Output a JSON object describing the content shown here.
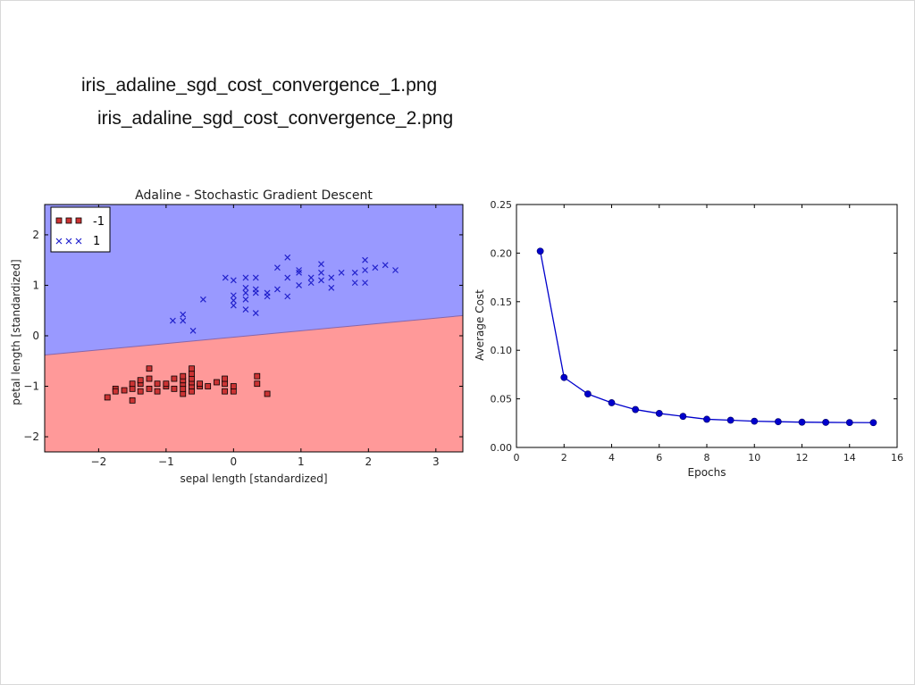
{
  "captions": [
    "iris_adaline_sgd_cost_convergence_1.png",
    "iris_adaline_sgd_cost_convergence_2.png"
  ],
  "colors": {
    "region_pos": "#9999ff",
    "region_neg": "#ff9999",
    "class_neg": "#cc3333",
    "class_pos": "#2222cc",
    "cost_line": "#0000cc"
  },
  "chart_data": [
    {
      "type": "scatter",
      "title": "Adaline - Stochastic Gradient Descent",
      "xlabel": "sepal length [standardized]",
      "ylabel": "petal length [standardized]",
      "xlim": [
        -2.8,
        3.4
      ],
      "ylim": [
        -2.3,
        2.6
      ],
      "xticks": [
        -2,
        -1,
        0,
        1,
        2,
        3
      ],
      "yticks": [
        -2,
        -1,
        0,
        1,
        2
      ],
      "legend_position": "top-left",
      "decision_boundary": {
        "x": [
          -2.8,
          3.4
        ],
        "y": [
          -0.38,
          0.4
        ]
      },
      "regions": [
        {
          "label": "1",
          "side": "above"
        },
        {
          "label": "-1",
          "side": "below"
        }
      ],
      "series": [
        {
          "name": "-1",
          "marker": "square",
          "points": [
            [
              -1.87,
              -1.22
            ],
            [
              -1.75,
              -1.05
            ],
            [
              -1.75,
              -1.1
            ],
            [
              -1.62,
              -1.08
            ],
            [
              -1.5,
              -1.05
            ],
            [
              -1.5,
              -0.95
            ],
            [
              -1.5,
              -1.28
            ],
            [
              -1.38,
              -1.1
            ],
            [
              -1.38,
              -0.95
            ],
            [
              -1.38,
              -0.88
            ],
            [
              -1.25,
              -1.05
            ],
            [
              -1.25,
              -0.85
            ],
            [
              -1.25,
              -0.65
            ],
            [
              -1.13,
              -1.1
            ],
            [
              -1.13,
              -0.95
            ],
            [
              -1.0,
              -1.0
            ],
            [
              -1.0,
              -0.95
            ],
            [
              -0.88,
              -1.05
            ],
            [
              -0.88,
              -0.85
            ],
            [
              -0.75,
              -1.15
            ],
            [
              -0.75,
              -1.05
            ],
            [
              -0.75,
              -0.95
            ],
            [
              -0.75,
              -0.88
            ],
            [
              -0.75,
              -0.8
            ],
            [
              -0.62,
              -1.1
            ],
            [
              -0.62,
              -1.0
            ],
            [
              -0.62,
              -0.92
            ],
            [
              -0.62,
              -0.85
            ],
            [
              -0.62,
              -0.75
            ],
            [
              -0.62,
              -0.65
            ],
            [
              -0.5,
              -1.0
            ],
            [
              -0.5,
              -0.95
            ],
            [
              -0.38,
              -1.0
            ],
            [
              -0.25,
              -0.92
            ],
            [
              -0.13,
              -1.1
            ],
            [
              -0.13,
              -0.95
            ],
            [
              -0.13,
              -0.85
            ],
            [
              0.0,
              -1.1
            ],
            [
              0.0,
              -1.0
            ],
            [
              0.35,
              -0.95
            ],
            [
              0.35,
              -0.8
            ],
            [
              0.5,
              -1.15
            ]
          ]
        },
        {
          "name": "1",
          "marker": "x",
          "points": [
            [
              -0.9,
              0.3
            ],
            [
              -0.75,
              0.3
            ],
            [
              -0.75,
              0.42
            ],
            [
              -0.6,
              0.1
            ],
            [
              -0.45,
              0.72
            ],
            [
              -0.12,
              1.15
            ],
            [
              0.0,
              1.1
            ],
            [
              0.0,
              0.8
            ],
            [
              0.0,
              0.7
            ],
            [
              0.0,
              0.6
            ],
            [
              0.18,
              1.15
            ],
            [
              0.18,
              0.95
            ],
            [
              0.18,
              0.85
            ],
            [
              0.18,
              0.72
            ],
            [
              0.18,
              0.52
            ],
            [
              0.33,
              1.15
            ],
            [
              0.33,
              0.92
            ],
            [
              0.33,
              0.85
            ],
            [
              0.33,
              0.45
            ],
            [
              0.5,
              0.85
            ],
            [
              0.5,
              0.78
            ],
            [
              0.65,
              1.35
            ],
            [
              0.65,
              0.92
            ],
            [
              0.8,
              1.55
            ],
            [
              0.8,
              1.15
            ],
            [
              0.8,
              0.78
            ],
            [
              0.97,
              1.3
            ],
            [
              0.97,
              1.25
            ],
            [
              0.97,
              1.0
            ],
            [
              1.15,
              1.15
            ],
            [
              1.15,
              1.05
            ],
            [
              1.3,
              1.42
            ],
            [
              1.3,
              1.25
            ],
            [
              1.3,
              1.1
            ],
            [
              1.45,
              1.15
            ],
            [
              1.45,
              0.95
            ],
            [
              1.6,
              1.25
            ],
            [
              1.8,
              1.25
            ],
            [
              1.8,
              1.05
            ],
            [
              1.95,
              1.5
            ],
            [
              1.95,
              1.3
            ],
            [
              1.95,
              1.05
            ],
            [
              2.1,
              1.35
            ],
            [
              2.25,
              1.4
            ],
            [
              2.4,
              1.3
            ]
          ]
        }
      ]
    },
    {
      "type": "line",
      "title": "",
      "xlabel": "Epochs",
      "ylabel": "Average Cost",
      "xlim": [
        0,
        16
      ],
      "ylim": [
        0,
        0.25
      ],
      "xticks": [
        "0",
        "2",
        "4",
        "6",
        "8",
        "10",
        "12",
        "14",
        "16"
      ],
      "yticks": [
        "0.00",
        "0.05",
        "0.10",
        "0.15",
        "0.20",
        "0.25"
      ],
      "x": [
        1,
        2,
        3,
        4,
        5,
        6,
        7,
        8,
        9,
        10,
        11,
        12,
        13,
        14,
        15
      ],
      "values": [
        0.202,
        0.072,
        0.055,
        0.046,
        0.039,
        0.035,
        0.032,
        0.029,
        0.028,
        0.027,
        0.0265,
        0.026,
        0.0258,
        0.0256,
        0.0255
      ]
    }
  ]
}
